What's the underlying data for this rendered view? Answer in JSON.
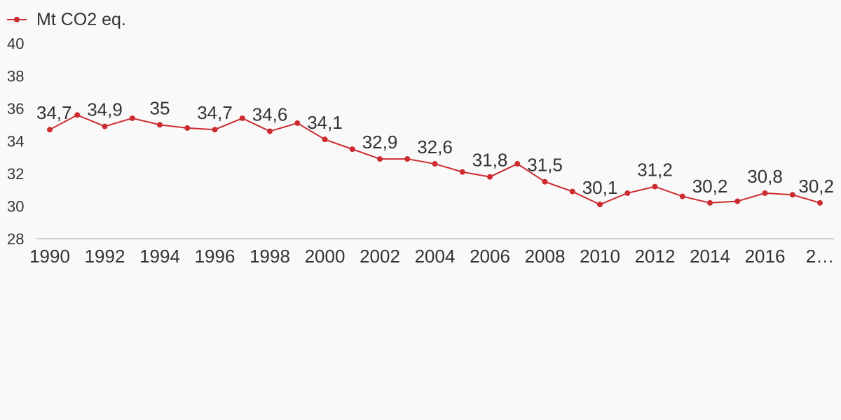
{
  "chart_data": {
    "type": "line",
    "title": "",
    "xlabel": "",
    "ylabel": "",
    "x": [
      "1990",
      "1991",
      "1992",
      "1993",
      "1994",
      "1995",
      "1996",
      "1997",
      "1998",
      "1999",
      "2000",
      "2001",
      "2002",
      "2003",
      "2004",
      "2005",
      "2006",
      "2007",
      "2008",
      "2009",
      "2010",
      "2011",
      "2012",
      "2013",
      "2014",
      "2015",
      "2016",
      "2017",
      "2018"
    ],
    "x_tick_labels": [
      "1990",
      "1992",
      "1994",
      "1996",
      "1998",
      "2000",
      "2002",
      "2004",
      "2006",
      "2008",
      "2010",
      "2012",
      "2014",
      "2016",
      "2…"
    ],
    "series": [
      {
        "name": "Mt CO2 eq.",
        "color": "#cc2b2f",
        "values": [
          34.7,
          35.6,
          34.9,
          35.4,
          35.0,
          34.8,
          34.7,
          35.4,
          34.6,
          35.1,
          34.1,
          33.5,
          32.9,
          32.9,
          32.6,
          32.1,
          31.8,
          32.6,
          31.5,
          30.9,
          30.1,
          30.8,
          31.2,
          30.6,
          30.2,
          30.3,
          30.8,
          30.7,
          30.2
        ],
        "data_labels": [
          {
            "x": "1990",
            "text": "34,7"
          },
          {
            "x": "1992",
            "text": "34,9"
          },
          {
            "x": "1994",
            "text": "35"
          },
          {
            "x": "1996",
            "text": "34,7"
          },
          {
            "x": "1998",
            "text": "34,6"
          },
          {
            "x": "2000",
            "text": "34,1"
          },
          {
            "x": "2002",
            "text": "32,9"
          },
          {
            "x": "2004",
            "text": "32,6"
          },
          {
            "x": "2006",
            "text": "31,8"
          },
          {
            "x": "2008",
            "text": "31,5"
          },
          {
            "x": "2010",
            "text": "30,1"
          },
          {
            "x": "2012",
            "text": "31,2"
          },
          {
            "x": "2014",
            "text": "30,2"
          },
          {
            "x": "2016",
            "text": "30,8"
          },
          {
            "x": "2018",
            "text": "30,2"
          }
        ]
      }
    ],
    "ylim": [
      28,
      40
    ],
    "y_ticks": [
      "28",
      "30",
      "32",
      "34",
      "36",
      "38",
      "40"
    ],
    "grid": false,
    "legend_position": "top-left",
    "colors": {
      "series": "#cc2b2f",
      "axis": "#d0d0d0",
      "background": "#f9f9f9",
      "text": "#333333"
    }
  }
}
